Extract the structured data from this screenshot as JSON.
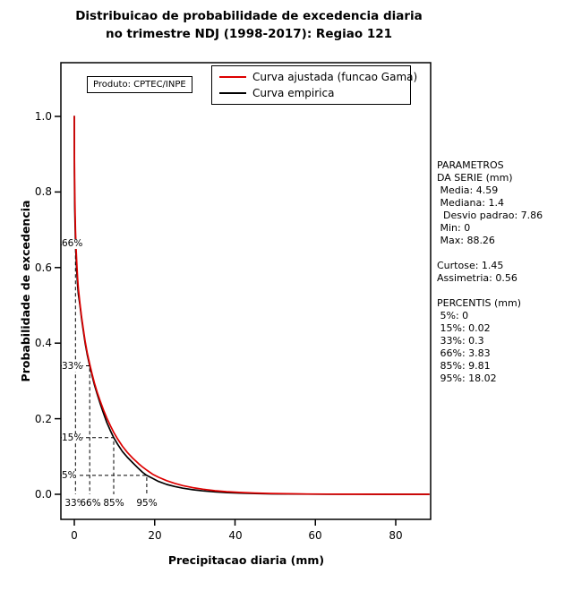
{
  "title": {
    "line1": "Distribuicao de probabilidade de excedencia diaria",
    "line2": "no trimestre NDJ (1998-2017): Regiao 121"
  },
  "plot": {
    "product_label": "Produto: CPTEC/INPE"
  },
  "stats_panel": {
    "lines": [
      "PARAMETROS",
      "DA SERIE (mm)",
      " Media: 4.59",
      " Mediana: 1.4",
      "  Desvio padrao: 7.86",
      " Min: 0",
      " Max: 88.26",
      "",
      "Curtose: 1.45",
      "Assimetria: 0.56",
      "",
      "PERCENTIS (mm)",
      " 5%: 0",
      " 15%: 0.02",
      " 33%: 0.3",
      " 66%: 3.83",
      " 85%: 9.81",
      " 95%: 18.02"
    ]
  },
  "chart_data": {
    "type": "line",
    "title": "Distribuicao de probabilidade de excedencia diaria no trimestre NDJ (1998-2017): Regiao 121",
    "xlabel": "Precipitacao diaria (mm)",
    "ylabel": "Probabilidade de excedencia",
    "xlim": [
      0,
      88.26
    ],
    "ylim": [
      0,
      1.0
    ],
    "x_ticks": [
      "0",
      "20",
      "40",
      "60",
      "80"
    ],
    "y_ticks": [
      "0.0",
      "0.2",
      "0.4",
      "0.6",
      "0.8",
      "1.0"
    ],
    "grid": false,
    "legend_position": "top-center-inside",
    "series": [
      {
        "name": "Curva empirica",
        "color": "#000000",
        "points": [
          [
            0,
            1.0
          ],
          [
            0.02,
            0.85
          ],
          [
            0.06,
            0.8
          ],
          [
            0.12,
            0.755
          ],
          [
            0.2,
            0.71
          ],
          [
            0.3,
            0.67
          ],
          [
            0.45,
            0.625
          ],
          [
            0.6,
            0.59
          ],
          [
            0.8,
            0.555
          ],
          [
            1.0,
            0.53
          ],
          [
            1.4,
            0.5
          ],
          [
            1.8,
            0.465
          ],
          [
            2.2,
            0.435
          ],
          [
            2.7,
            0.4
          ],
          [
            3.2,
            0.37
          ],
          [
            3.83,
            0.34
          ],
          [
            4.4,
            0.315
          ],
          [
            5.0,
            0.29
          ],
          [
            5.7,
            0.265
          ],
          [
            6.5,
            0.238
          ],
          [
            7.3,
            0.213
          ],
          [
            8.1,
            0.19
          ],
          [
            9.0,
            0.168
          ],
          [
            9.81,
            0.15
          ],
          [
            10.8,
            0.132
          ],
          [
            12,
            0.113
          ],
          [
            13.2,
            0.098
          ],
          [
            14.5,
            0.084
          ],
          [
            16,
            0.068
          ],
          [
            17,
            0.058
          ],
          [
            18.02,
            0.05
          ],
          [
            19.5,
            0.042
          ],
          [
            21,
            0.034
          ],
          [
            23,
            0.026
          ],
          [
            25,
            0.0205
          ],
          [
            27,
            0.016
          ],
          [
            29.5,
            0.012
          ],
          [
            32,
            0.009
          ],
          [
            35,
            0.0063
          ],
          [
            38,
            0.0045
          ],
          [
            41,
            0.0032
          ],
          [
            45,
            0.002
          ],
          [
            49,
            0.0013
          ],
          [
            53,
            0.0008
          ],
          [
            58,
            0.0005
          ],
          [
            63,
            0.0003
          ],
          [
            70,
            0.00015
          ],
          [
            78,
            6e-05
          ],
          [
            88.26,
            0.0
          ]
        ]
      },
      {
        "name": "Curva ajustada (funcao Gama)",
        "color": "#dd0000",
        "points": [
          [
            0,
            1.0
          ],
          [
            0.01,
            0.97
          ],
          [
            0.03,
            0.9
          ],
          [
            0.06,
            0.855
          ],
          [
            0.12,
            0.8
          ],
          [
            0.2,
            0.745
          ],
          [
            0.3,
            0.7
          ],
          [
            0.45,
            0.65
          ],
          [
            0.6,
            0.615
          ],
          [
            0.8,
            0.575
          ],
          [
            1.0,
            0.545
          ],
          [
            1.4,
            0.505
          ],
          [
            1.8,
            0.47
          ],
          [
            2.2,
            0.44
          ],
          [
            2.7,
            0.405
          ],
          [
            3.2,
            0.375
          ],
          [
            3.83,
            0.345
          ],
          [
            4.4,
            0.32
          ],
          [
            5.0,
            0.295
          ],
          [
            5.7,
            0.27
          ],
          [
            6.5,
            0.245
          ],
          [
            7.3,
            0.222
          ],
          [
            8.1,
            0.202
          ],
          [
            9.0,
            0.181
          ],
          [
            9.81,
            0.164
          ],
          [
            10.8,
            0.146
          ],
          [
            12,
            0.127
          ],
          [
            13.2,
            0.111
          ],
          [
            14.5,
            0.096
          ],
          [
            16,
            0.081
          ],
          [
            17,
            0.072
          ],
          [
            18.02,
            0.064
          ],
          [
            19.5,
            0.053
          ],
          [
            21,
            0.045
          ],
          [
            23,
            0.036
          ],
          [
            25,
            0.029
          ],
          [
            27,
            0.023
          ],
          [
            29.5,
            0.0175
          ],
          [
            32,
            0.0135
          ],
          [
            35,
            0.0095
          ],
          [
            38,
            0.0068
          ],
          [
            41,
            0.005
          ],
          [
            45,
            0.0032
          ],
          [
            49,
            0.0021
          ],
          [
            53,
            0.0014
          ],
          [
            58,
            0.0008
          ],
          [
            63,
            0.0005
          ],
          [
            70,
            0.00025
          ],
          [
            78,
            0.0001
          ],
          [
            88.26,
            4e-05
          ]
        ]
      }
    ],
    "percentile_guides": [
      {
        "exceedance_label": "66%",
        "percentile_label": "33%",
        "x": 0.3,
        "y": 0.66
      },
      {
        "exceedance_label": "33%",
        "percentile_label": "66%",
        "x": 3.83,
        "y": 0.34
      },
      {
        "exceedance_label": "15%",
        "percentile_label": "85%",
        "x": 9.81,
        "y": 0.15
      },
      {
        "exceedance_label": "5%",
        "percentile_label": "95%",
        "x": 18.02,
        "y": 0.05
      }
    ]
  }
}
